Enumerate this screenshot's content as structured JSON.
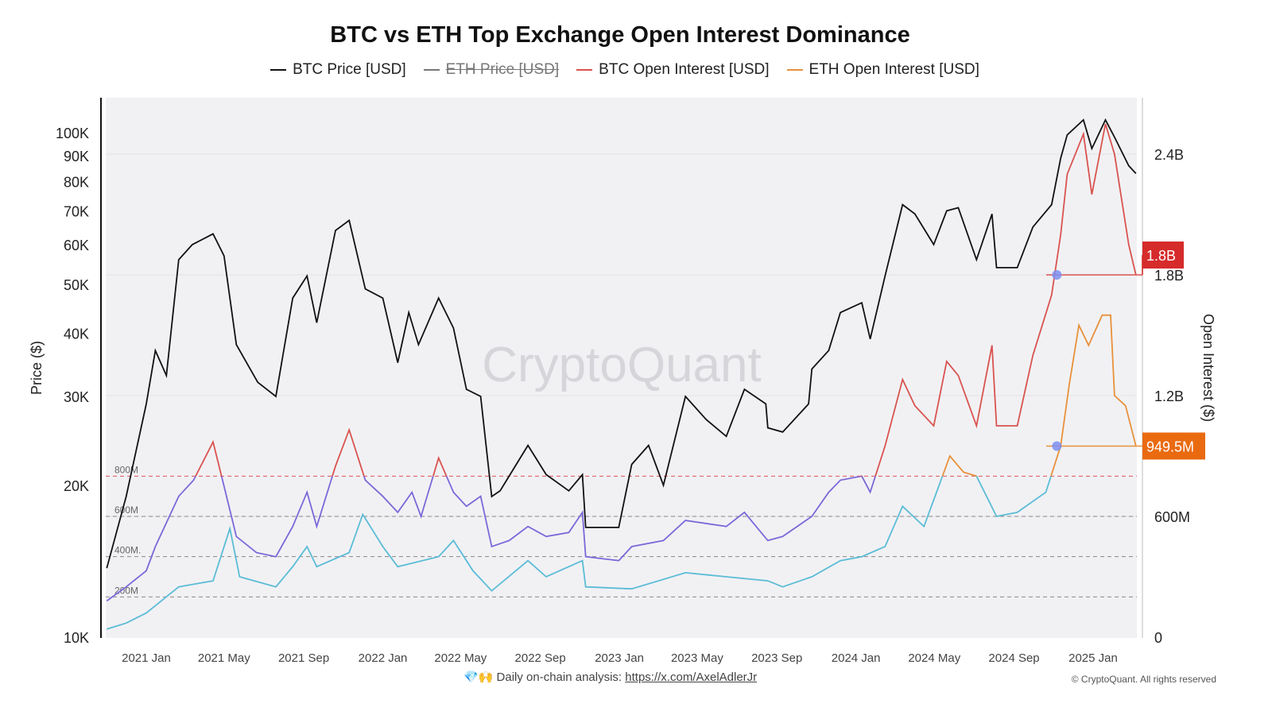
{
  "chart_data": {
    "type": "line",
    "title": "BTC vs ETH Top Exchange Open Interest Dominance",
    "legend": [
      {
        "name": "BTC Price [USD]",
        "color": "#111111",
        "visible": true
      },
      {
        "name": "ETH Price [USD]",
        "color": "#777777",
        "visible": false
      },
      {
        "name": "BTC Open Interest [USD]",
        "color": "#d9534f",
        "visible": true
      },
      {
        "name": "ETH Open Interest [USD]",
        "color": "#e8913a",
        "visible": true
      }
    ],
    "legend_position": "top-center",
    "ylabel_left": "Price ($)",
    "ylabel_right": "Open Interest ($)",
    "y_left_scale": "log",
    "y_left_range": [
      10000,
      130000
    ],
    "y_left_ticks": [
      {
        "v": 10000,
        "label": "10K"
      },
      {
        "v": 20000,
        "label": "20K"
      },
      {
        "v": 30000,
        "label": "30K"
      },
      {
        "v": 40000,
        "label": "40K"
      },
      {
        "v": 50000,
        "label": "50K"
      },
      {
        "v": 60000,
        "label": "60K"
      },
      {
        "v": 70000,
        "label": "70K"
      },
      {
        "v": 80000,
        "label": "80K"
      },
      {
        "v": 90000,
        "label": "90K"
      },
      {
        "v": 100000,
        "label": "100K"
      }
    ],
    "y_right_range": [
      0,
      2.7
    ],
    "y_right_unit": "billions USD",
    "y_right_ticks": [
      {
        "v": 0,
        "label": "0"
      },
      {
        "v": 0.6,
        "label": "600M"
      },
      {
        "v": 1.2,
        "label": "1.2B"
      },
      {
        "v": 1.8,
        "label": "1.8B"
      },
      {
        "v": 2.4,
        "label": "2.4B"
      }
    ],
    "threshold_lines": [
      {
        "v": 0.8,
        "label": "800M",
        "color": "#e05555"
      },
      {
        "v": 0.6,
        "label": "600M",
        "color": "#888888"
      },
      {
        "v": 0.4,
        "label": "400M.",
        "color": "#888888"
      },
      {
        "v": 0.2,
        "label": "200M",
        "color": "#888888"
      }
    ],
    "threshold_coloring": {
      "level": 0.8,
      "btc_below": "#7b68d8",
      "btc_above": "#d9534f",
      "eth_below": "#5bbcd6",
      "eth_above": "#e8913a"
    },
    "x_range": [
      "2020-11-01",
      "2025-03-08"
    ],
    "x_ticks": [
      "2021 Jan",
      "2021 May",
      "2021 Sep",
      "2022 Jan",
      "2022 May",
      "2022 Sep",
      "2023 Jan",
      "2023 May",
      "2023 Sep",
      "2024 Jan",
      "2024 May",
      "2024 Sep",
      "2025 Jan"
    ],
    "x_tick_dates": [
      "2021-01-01",
      "2021-05-01",
      "2021-09-01",
      "2022-01-01",
      "2022-05-01",
      "2022-09-01",
      "2023-01-01",
      "2023-05-01",
      "2023-09-01",
      "2024-01-01",
      "2024-05-01",
      "2024-09-01",
      "2025-01-01"
    ],
    "btc_price": [
      [
        "2020-11-01",
        13700
      ],
      [
        "2020-12-01",
        19000
      ],
      [
        "2021-01-01",
        29000
      ],
      [
        "2021-01-15",
        37000
      ],
      [
        "2021-02-01",
        33000
      ],
      [
        "2021-02-20",
        56000
      ],
      [
        "2021-03-13",
        60000
      ],
      [
        "2021-04-14",
        63000
      ],
      [
        "2021-05-01",
        57000
      ],
      [
        "2021-05-20",
        38000
      ],
      [
        "2021-06-22",
        32000
      ],
      [
        "2021-07-20",
        30000
      ],
      [
        "2021-08-15",
        47000
      ],
      [
        "2021-09-06",
        52000
      ],
      [
        "2021-09-21",
        42000
      ],
      [
        "2021-10-20",
        64000
      ],
      [
        "2021-11-10",
        67000
      ],
      [
        "2021-12-05",
        49000
      ],
      [
        "2022-01-01",
        47000
      ],
      [
        "2022-01-24",
        35000
      ],
      [
        "2022-02-10",
        44000
      ],
      [
        "2022-02-25",
        38000
      ],
      [
        "2022-03-28",
        47000
      ],
      [
        "2022-04-20",
        41000
      ],
      [
        "2022-05-10",
        31000
      ],
      [
        "2022-06-01",
        30000
      ],
      [
        "2022-06-18",
        19000
      ],
      [
        "2022-07-01",
        19500
      ],
      [
        "2022-08-13",
        24000
      ],
      [
        "2022-09-10",
        21000
      ],
      [
        "2022-10-15",
        19500
      ],
      [
        "2022-11-05",
        21000
      ],
      [
        "2022-11-10",
        16500
      ],
      [
        "2022-12-31",
        16500
      ],
      [
        "2023-01-20",
        22000
      ],
      [
        "2023-02-15",
        24000
      ],
      [
        "2023-03-10",
        20000
      ],
      [
        "2023-04-13",
        30000
      ],
      [
        "2023-05-15",
        27000
      ],
      [
        "2023-06-15",
        25000
      ],
      [
        "2023-07-13",
        31000
      ],
      [
        "2023-08-15",
        29000
      ],
      [
        "2023-08-18",
        26000
      ],
      [
        "2023-09-10",
        25500
      ],
      [
        "2023-10-20",
        29000
      ],
      [
        "2023-10-25",
        34000
      ],
      [
        "2023-11-20",
        37000
      ],
      [
        "2023-12-08",
        44000
      ],
      [
        "2024-01-10",
        46000
      ],
      [
        "2024-01-23",
        39000
      ],
      [
        "2024-02-15",
        52000
      ],
      [
        "2024-03-13",
        72000
      ],
      [
        "2024-04-01",
        69000
      ],
      [
        "2024-04-30",
        60000
      ],
      [
        "2024-05-20",
        70000
      ],
      [
        "2024-06-07",
        71000
      ],
      [
        "2024-07-05",
        56000
      ],
      [
        "2024-07-29",
        69000
      ],
      [
        "2024-08-05",
        54000
      ],
      [
        "2024-09-06",
        54000
      ],
      [
        "2024-09-30",
        65000
      ],
      [
        "2024-10-29",
        72000
      ],
      [
        "2024-11-12",
        89000
      ],
      [
        "2024-11-22",
        99000
      ],
      [
        "2024-12-17",
        106000
      ],
      [
        "2024-12-30",
        93000
      ],
      [
        "2025-01-20",
        106000
      ],
      [
        "2025-02-03",
        98000
      ],
      [
        "2025-02-25",
        86000
      ],
      [
        "2025-03-08",
        83000
      ]
    ],
    "btc_open_interest_b": [
      [
        "2020-11-01",
        0.18
      ],
      [
        "2020-12-01",
        0.25
      ],
      [
        "2021-01-01",
        0.33
      ],
      [
        "2021-01-15",
        0.45
      ],
      [
        "2021-02-20",
        0.7
      ],
      [
        "2021-03-15",
        0.78
      ],
      [
        "2021-04-14",
        0.97
      ],
      [
        "2021-05-01",
        0.75
      ],
      [
        "2021-05-20",
        0.5
      ],
      [
        "2021-06-20",
        0.42
      ],
      [
        "2021-07-20",
        0.4
      ],
      [
        "2021-08-15",
        0.55
      ],
      [
        "2021-09-06",
        0.72
      ],
      [
        "2021-09-21",
        0.55
      ],
      [
        "2021-10-20",
        0.85
      ],
      [
        "2021-11-10",
        1.03
      ],
      [
        "2021-12-05",
        0.78
      ],
      [
        "2022-01-01",
        0.7
      ],
      [
        "2022-01-24",
        0.62
      ],
      [
        "2022-02-15",
        0.72
      ],
      [
        "2022-03-01",
        0.6
      ],
      [
        "2022-03-28",
        0.89
      ],
      [
        "2022-04-20",
        0.72
      ],
      [
        "2022-05-10",
        0.65
      ],
      [
        "2022-06-01",
        0.7
      ],
      [
        "2022-06-18",
        0.45
      ],
      [
        "2022-07-15",
        0.48
      ],
      [
        "2022-08-13",
        0.55
      ],
      [
        "2022-09-10",
        0.5
      ],
      [
        "2022-10-15",
        0.52
      ],
      [
        "2022-11-05",
        0.62
      ],
      [
        "2022-11-10",
        0.4
      ],
      [
        "2022-12-31",
        0.38
      ],
      [
        "2023-01-20",
        0.45
      ],
      [
        "2023-03-10",
        0.48
      ],
      [
        "2023-04-13",
        0.58
      ],
      [
        "2023-06-15",
        0.55
      ],
      [
        "2023-07-13",
        0.62
      ],
      [
        "2023-08-18",
        0.48
      ],
      [
        "2023-09-10",
        0.5
      ],
      [
        "2023-10-25",
        0.6
      ],
      [
        "2023-11-20",
        0.72
      ],
      [
        "2023-12-08",
        0.78
      ],
      [
        "2024-01-10",
        0.8
      ],
      [
        "2024-01-23",
        0.72
      ],
      [
        "2024-02-15",
        0.95
      ],
      [
        "2024-03-13",
        1.28
      ],
      [
        "2024-04-01",
        1.15
      ],
      [
        "2024-04-30",
        1.05
      ],
      [
        "2024-05-20",
        1.37
      ],
      [
        "2024-06-07",
        1.3
      ],
      [
        "2024-07-05",
        1.05
      ],
      [
        "2024-07-29",
        1.45
      ],
      [
        "2024-08-05",
        1.05
      ],
      [
        "2024-09-06",
        1.05
      ],
      [
        "2024-09-30",
        1.4
      ],
      [
        "2024-10-29",
        1.7
      ],
      [
        "2024-11-12",
        2.0
      ],
      [
        "2024-11-22",
        2.3
      ],
      [
        "2024-12-17",
        2.5
      ],
      [
        "2024-12-30",
        2.2
      ],
      [
        "2025-01-20",
        2.55
      ],
      [
        "2025-02-03",
        2.4
      ],
      [
        "2025-02-25",
        1.95
      ],
      [
        "2025-03-08",
        1.8
      ]
    ],
    "eth_open_interest_b": [
      [
        "2020-11-01",
        0.04
      ],
      [
        "2020-12-01",
        0.07
      ],
      [
        "2021-01-01",
        0.12
      ],
      [
        "2021-02-20",
        0.25
      ],
      [
        "2021-04-14",
        0.28
      ],
      [
        "2021-05-10",
        0.54
      ],
      [
        "2021-05-25",
        0.3
      ],
      [
        "2021-07-20",
        0.25
      ],
      [
        "2021-08-15",
        0.35
      ],
      [
        "2021-09-06",
        0.45
      ],
      [
        "2021-09-21",
        0.35
      ],
      [
        "2021-11-10",
        0.42
      ],
      [
        "2021-12-01",
        0.61
      ],
      [
        "2022-01-01",
        0.45
      ],
      [
        "2022-01-24",
        0.35
      ],
      [
        "2022-03-28",
        0.4
      ],
      [
        "2022-04-20",
        0.48
      ],
      [
        "2022-05-20",
        0.33
      ],
      [
        "2022-06-18",
        0.23
      ],
      [
        "2022-08-13",
        0.38
      ],
      [
        "2022-09-10",
        0.3
      ],
      [
        "2022-11-05",
        0.38
      ],
      [
        "2022-11-10",
        0.25
      ],
      [
        "2023-01-20",
        0.24
      ],
      [
        "2023-04-13",
        0.32
      ],
      [
        "2023-06-15",
        0.3
      ],
      [
        "2023-08-18",
        0.28
      ],
      [
        "2023-09-10",
        0.25
      ],
      [
        "2023-10-25",
        0.3
      ],
      [
        "2023-12-08",
        0.38
      ],
      [
        "2024-01-10",
        0.4
      ],
      [
        "2024-02-15",
        0.45
      ],
      [
        "2024-03-13",
        0.65
      ],
      [
        "2024-04-15",
        0.55
      ],
      [
        "2024-05-25",
        0.9
      ],
      [
        "2024-06-15",
        0.82
      ],
      [
        "2024-07-05",
        0.8
      ],
      [
        "2024-08-05",
        0.6
      ],
      [
        "2024-09-06",
        0.62
      ],
      [
        "2024-10-20",
        0.72
      ],
      [
        "2024-11-12",
        0.95
      ],
      [
        "2024-11-25",
        1.25
      ],
      [
        "2024-12-10",
        1.55
      ],
      [
        "2024-12-25",
        1.45
      ],
      [
        "2025-01-15",
        1.6
      ],
      [
        "2025-01-28",
        1.6
      ],
      [
        "2025-02-03",
        1.2
      ],
      [
        "2025-02-20",
        1.15
      ],
      [
        "2025-03-08",
        0.95
      ]
    ],
    "current_values": [
      {
        "label": "1.8B",
        "v": 1.8,
        "color": "#d62b2b"
      },
      {
        "label": "949.5M",
        "v": 0.9495,
        "color": "#ea6a10"
      }
    ],
    "crosshair_date": "2024-11-06",
    "watermark": "CryptoQuant"
  },
  "footer": {
    "emoji": "💎🙌",
    "text": "Daily on-chain analysis: ",
    "link": "https://x.com/AxelAdlerJr",
    "copyright": "© CryptoQuant. All rights reserved"
  }
}
